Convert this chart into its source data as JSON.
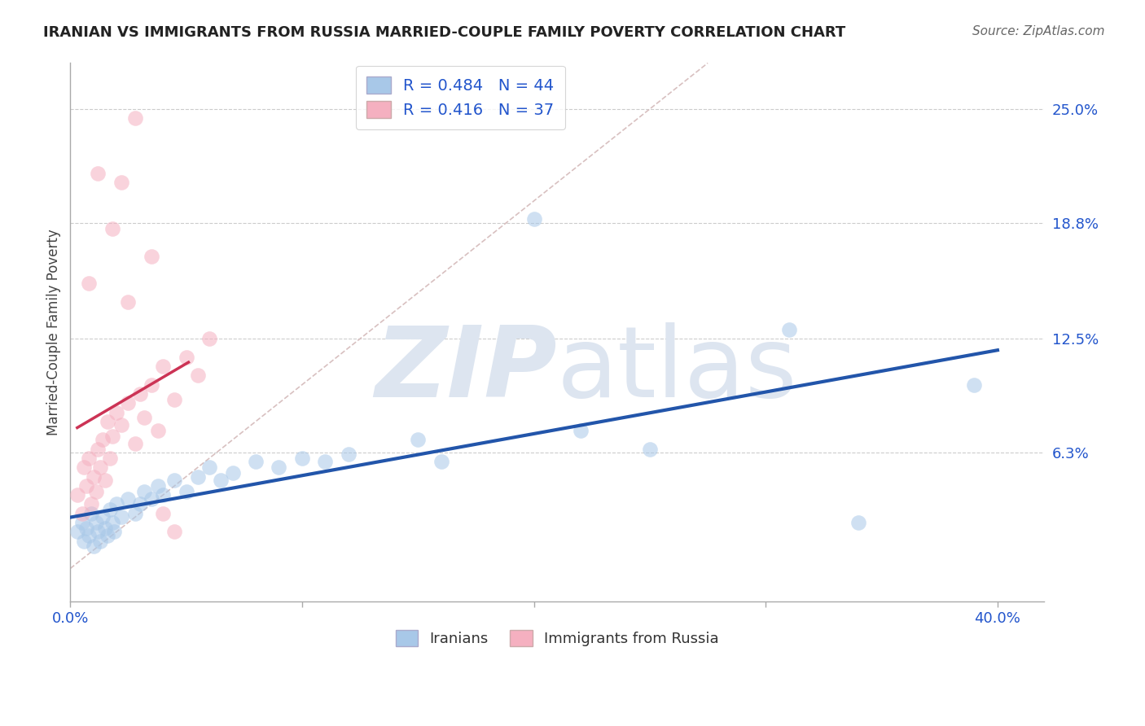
{
  "title": "IRANIAN VS IMMIGRANTS FROM RUSSIA MARRIED-COUPLE FAMILY POVERTY CORRELATION CHART",
  "source": "Source: ZipAtlas.com",
  "ylabel": "Married-Couple Family Poverty",
  "xlim": [
    0.0,
    0.42
  ],
  "ylim": [
    -0.018,
    0.275
  ],
  "y_tick_vals": [
    0.063,
    0.125,
    0.188,
    0.25
  ],
  "y_tick_labels": [
    "6.3%",
    "12.5%",
    "18.8%",
    "25.0%"
  ],
  "blue_R": 0.484,
  "blue_N": 44,
  "pink_R": 0.416,
  "pink_N": 37,
  "blue_color": "#a8c8e8",
  "pink_color": "#f5b0c0",
  "blue_line_color": "#2255aa",
  "pink_line_color": "#cc3355",
  "legend_R_color": "#2255cc",
  "diagonal_color": "#d8c0c0",
  "watermark_color": "#dde5f0",
  "background_color": "#ffffff",
  "blue_scatter": [
    [
      0.003,
      0.02
    ],
    [
      0.005,
      0.025
    ],
    [
      0.006,
      0.015
    ],
    [
      0.007,
      0.022
    ],
    [
      0.008,
      0.018
    ],
    [
      0.009,
      0.03
    ],
    [
      0.01,
      0.012
    ],
    [
      0.011,
      0.025
    ],
    [
      0.012,
      0.02
    ],
    [
      0.013,
      0.015
    ],
    [
      0.014,
      0.028
    ],
    [
      0.015,
      0.022
    ],
    [
      0.016,
      0.018
    ],
    [
      0.017,
      0.032
    ],
    [
      0.018,
      0.025
    ],
    [
      0.019,
      0.02
    ],
    [
      0.02,
      0.035
    ],
    [
      0.022,
      0.028
    ],
    [
      0.025,
      0.038
    ],
    [
      0.028,
      0.03
    ],
    [
      0.03,
      0.035
    ],
    [
      0.032,
      0.042
    ],
    [
      0.035,
      0.038
    ],
    [
      0.038,
      0.045
    ],
    [
      0.04,
      0.04
    ],
    [
      0.045,
      0.048
    ],
    [
      0.05,
      0.042
    ],
    [
      0.055,
      0.05
    ],
    [
      0.06,
      0.055
    ],
    [
      0.065,
      0.048
    ],
    [
      0.07,
      0.052
    ],
    [
      0.08,
      0.058
    ],
    [
      0.09,
      0.055
    ],
    [
      0.1,
      0.06
    ],
    [
      0.11,
      0.058
    ],
    [
      0.12,
      0.062
    ],
    [
      0.15,
      0.07
    ],
    [
      0.16,
      0.058
    ],
    [
      0.2,
      0.19
    ],
    [
      0.22,
      0.075
    ],
    [
      0.25,
      0.065
    ],
    [
      0.31,
      0.13
    ],
    [
      0.34,
      0.025
    ],
    [
      0.39,
      0.1
    ]
  ],
  "pink_scatter": [
    [
      0.003,
      0.04
    ],
    [
      0.005,
      0.03
    ],
    [
      0.006,
      0.055
    ],
    [
      0.007,
      0.045
    ],
    [
      0.008,
      0.06
    ],
    [
      0.009,
      0.035
    ],
    [
      0.01,
      0.05
    ],
    [
      0.011,
      0.042
    ],
    [
      0.012,
      0.065
    ],
    [
      0.013,
      0.055
    ],
    [
      0.014,
      0.07
    ],
    [
      0.015,
      0.048
    ],
    [
      0.016,
      0.08
    ],
    [
      0.017,
      0.06
    ],
    [
      0.018,
      0.072
    ],
    [
      0.02,
      0.085
    ],
    [
      0.022,
      0.078
    ],
    [
      0.025,
      0.09
    ],
    [
      0.028,
      0.068
    ],
    [
      0.03,
      0.095
    ],
    [
      0.032,
      0.082
    ],
    [
      0.035,
      0.1
    ],
    [
      0.038,
      0.075
    ],
    [
      0.04,
      0.11
    ],
    [
      0.045,
      0.092
    ],
    [
      0.05,
      0.115
    ],
    [
      0.055,
      0.105
    ],
    [
      0.06,
      0.125
    ],
    [
      0.022,
      0.21
    ],
    [
      0.028,
      0.245
    ],
    [
      0.012,
      0.215
    ],
    [
      0.018,
      0.185
    ],
    [
      0.008,
      0.155
    ],
    [
      0.035,
      0.17
    ],
    [
      0.025,
      0.145
    ],
    [
      0.04,
      0.03
    ],
    [
      0.045,
      0.02
    ]
  ]
}
